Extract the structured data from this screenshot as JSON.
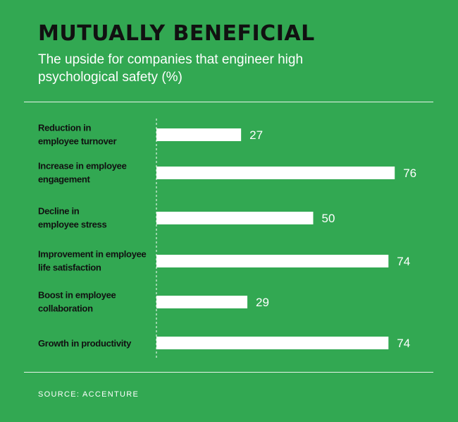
{
  "header": {
    "title": "MUTUALLY BENEFICIAL",
    "subtitle": "The upside for companies that engineer high psychological safety (%)"
  },
  "footer": {
    "source": "SOURCE: ACCENTURE"
  },
  "colors": {
    "background": "#32a852",
    "bar": "#ffffff",
    "title": "#111111",
    "category_text": "#111111",
    "value_text": "#ffffff"
  },
  "chart_data": {
    "type": "bar",
    "orientation": "horizontal",
    "categories": [
      [
        "Reduction in",
        "employee turnover"
      ],
      [
        "Increase in employee",
        "engagement"
      ],
      [
        "Decline in",
        "employee stress"
      ],
      [
        "Improvement in employee",
        "life satisfaction"
      ],
      [
        "Boost in employee",
        "collaboration"
      ],
      [
        "Growth in productivity"
      ]
    ],
    "values": [
      27,
      76,
      50,
      74,
      29,
      74
    ],
    "title": "MUTUALLY BENEFICIAL",
    "subtitle": "The upside for companies that engineer high psychological safety (%)",
    "data_labels": true,
    "grid": false,
    "baseline": "dashed"
  }
}
